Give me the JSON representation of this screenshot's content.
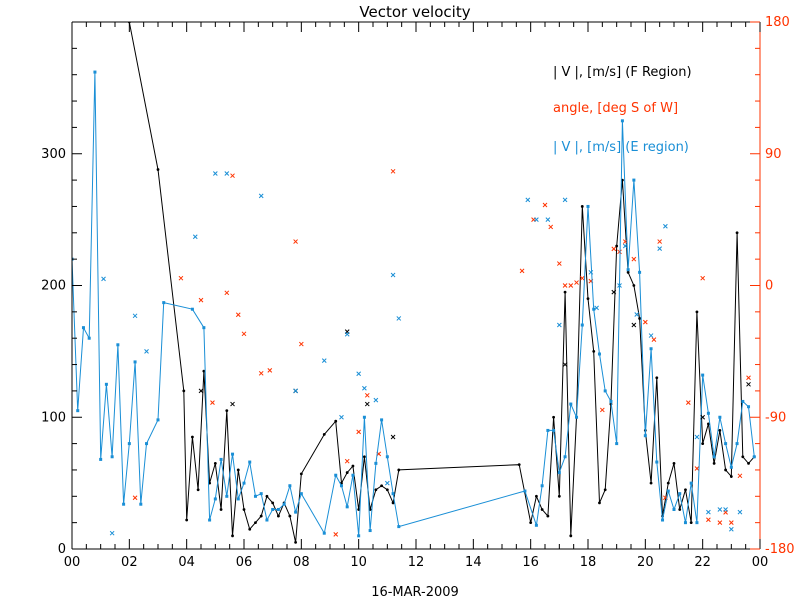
{
  "chart_data": {
    "type": "line",
    "title": "Vector velocity",
    "xlabel": "16-MAR-2009",
    "x_tick_labels": [
      "00",
      "02",
      "04",
      "06",
      "08",
      "10",
      "12",
      "14",
      "16",
      "18",
      "20",
      "22",
      "00"
    ],
    "xlim_hours": [
      0,
      24
    ],
    "y_left": {
      "range": [
        0,
        400
      ],
      "ticks": [
        0,
        100,
        200,
        300
      ],
      "tick_labels": [
        "0",
        "100",
        "200",
        "300"
      ]
    },
    "y_right": {
      "range": [
        -180,
        180
      ],
      "ticks": [
        -180,
        -90,
        0,
        90,
        180
      ],
      "tick_labels": [
        "-180",
        "-90",
        "0",
        "90",
        "180"
      ],
      "color": "#ff3300"
    },
    "legend_placement": "top-right",
    "series": [
      {
        "name": "| V |, [m/s] (F Region)",
        "color": "#000000",
        "axis": "left",
        "style": "line",
        "x": [
          2.0,
          3.0,
          3.9,
          4.0,
          4.2,
          4.4,
          4.6,
          4.8,
          5.0,
          5.2,
          5.4,
          5.6,
          5.8,
          6.0,
          6.2,
          6.4,
          6.6,
          6.8,
          7.0,
          7.2,
          7.4,
          7.6,
          7.8,
          8.0,
          8.8,
          9.2,
          9.4,
          9.6,
          9.8,
          10.0,
          10.2,
          10.4,
          10.6,
          10.8,
          11.0,
          11.2,
          11.4,
          15.6,
          16.0,
          16.2,
          16.4,
          16.6,
          16.8,
          17.0,
          17.2,
          17.4,
          17.6,
          17.8,
          18.0,
          18.2,
          18.4,
          18.6,
          18.8,
          19.0,
          19.2,
          19.4,
          19.6,
          19.8,
          20.0,
          20.2,
          20.4,
          20.6,
          20.8,
          21.0,
          21.2,
          21.4,
          21.6,
          21.8,
          22.0,
          22.2,
          22.4,
          22.6,
          22.8,
          23.0,
          23.2,
          23.4,
          23.6,
          23.8
        ],
        "y": [
          400,
          288,
          120,
          22,
          85,
          45,
          135,
          50,
          65,
          30,
          105,
          10,
          60,
          30,
          15,
          20,
          25,
          40,
          35,
          25,
          35,
          25,
          5,
          57,
          87,
          97,
          50,
          58,
          63,
          30,
          70,
          30,
          45,
          48,
          45,
          35,
          60,
          64,
          20,
          40,
          30,
          25,
          100,
          40,
          195,
          10,
          100,
          260,
          190,
          150,
          35,
          45,
          110,
          230,
          280,
          210,
          200,
          175,
          90,
          50,
          130,
          25,
          50,
          65,
          30,
          45,
          20,
          180,
          80,
          95,
          65,
          90,
          60,
          55,
          240,
          70,
          65,
          70
        ]
      },
      {
        "name": "angle, [deg S of W]",
        "color": "#ff3300",
        "axis": "right",
        "style": "scatter",
        "x": [
          2.2,
          3.8,
          4.5,
          4.9,
          5.4,
          5.6,
          5.8,
          6.0,
          6.6,
          6.9,
          7.8,
          8.0,
          9.2,
          9.6,
          10.0,
          10.3,
          10.7,
          11.2,
          15.7,
          16.1,
          16.5,
          16.7,
          17.0,
          17.2,
          17.4,
          17.6,
          17.8,
          18.1,
          18.5,
          18.9,
          19.1,
          19.3,
          19.6,
          20.0,
          20.3,
          20.5,
          20.7,
          21.5,
          21.8,
          22.0,
          22.2,
          22.6,
          22.8,
          23.0,
          23.3,
          23.6
        ],
        "y": [
          -145,
          5,
          -10,
          -80,
          -5,
          75,
          -20,
          -33,
          -60,
          -58,
          30,
          -40,
          -170,
          -120,
          -100,
          -75,
          -115,
          78,
          10,
          45,
          55,
          40,
          15,
          0,
          0,
          2,
          5,
          3,
          -85,
          25,
          23,
          30,
          18,
          -25,
          -37,
          30,
          -145,
          -80,
          -125,
          5,
          -160,
          -162,
          -155,
          -162,
          -130,
          -63
        ]
      },
      {
        "name": "| V |, [m/s] (E region)",
        "color": "#1a8fd6",
        "axis": "left",
        "style": "line",
        "x": [
          0.0,
          0.2,
          0.4,
          0.6,
          0.8,
          1.0,
          1.2,
          1.4,
          1.6,
          1.8,
          2.0,
          2.2,
          2.4,
          2.6,
          3.0,
          3.2,
          4.2,
          4.6,
          4.8,
          5.0,
          5.2,
          5.4,
          5.6,
          5.8,
          6.0,
          6.2,
          6.4,
          6.6,
          6.8,
          7.0,
          7.2,
          7.4,
          7.6,
          7.8,
          8.0,
          8.8,
          9.2,
          9.4,
          9.6,
          9.8,
          10.0,
          10.2,
          10.4,
          10.6,
          10.8,
          11.0,
          11.2,
          11.4,
          15.8,
          16.2,
          16.4,
          16.6,
          16.8,
          17.0,
          17.2,
          17.4,
          17.6,
          17.8,
          18.0,
          18.2,
          18.4,
          18.6,
          18.8,
          19.0,
          19.2,
          19.4,
          19.6,
          19.8,
          20.0,
          20.2,
          20.4,
          20.6,
          20.8,
          21.0,
          21.2,
          21.4,
          21.6,
          21.8,
          22.0,
          22.2,
          22.4,
          22.6,
          22.8,
          23.0,
          23.2,
          23.4,
          23.6,
          23.8
        ],
        "y": [
          220,
          105,
          168,
          160,
          362,
          68,
          125,
          70,
          155,
          34,
          80,
          142,
          34,
          80,
          98,
          187,
          182,
          168,
          22,
          38,
          68,
          40,
          72,
          38,
          50,
          66,
          40,
          42,
          22,
          30,
          30,
          34,
          48,
          28,
          42,
          12,
          56,
          48,
          32,
          56,
          10,
          100,
          14,
          65,
          98,
          70,
          42,
          17,
          44,
          18,
          48,
          90,
          90,
          58,
          70,
          110,
          100,
          170,
          260,
          182,
          148,
          120,
          112,
          80,
          325,
          212,
          280,
          210,
          86,
          152,
          66,
          22,
          44,
          30,
          42,
          20,
          50,
          20,
          132,
          103,
          70,
          100,
          80,
          62,
          80,
          112,
          108,
          70
        ]
      }
    ],
    "extra_markers": {
      "black_x": [
        [
          4.5,
          120
        ],
        [
          5.6,
          110
        ],
        [
          7.8,
          120
        ],
        [
          9.6,
          165
        ],
        [
          10.3,
          110
        ],
        [
          11.2,
          85
        ],
        [
          17.2,
          140
        ],
        [
          18.9,
          195
        ],
        [
          19.6,
          170
        ],
        [
          22.0,
          100
        ],
        [
          23.6,
          125
        ]
      ],
      "blue_x": [
        [
          1.1,
          205
        ],
        [
          1.4,
          12
        ],
        [
          2.2,
          177
        ],
        [
          2.6,
          150
        ],
        [
          4.3,
          237
        ],
        [
          5.0,
          285
        ],
        [
          5.4,
          285
        ],
        [
          6.6,
          268
        ],
        [
          7.8,
          120
        ],
        [
          8.8,
          143
        ],
        [
          9.4,
          100
        ],
        [
          9.6,
          163
        ],
        [
          10.0,
          133
        ],
        [
          10.2,
          122
        ],
        [
          10.6,
          113
        ],
        [
          11.0,
          50
        ],
        [
          11.2,
          208
        ],
        [
          11.4,
          175
        ],
        [
          15.9,
          265
        ],
        [
          16.2,
          250
        ],
        [
          16.6,
          250
        ],
        [
          17.0,
          170
        ],
        [
          17.2,
          265
        ],
        [
          18.1,
          210
        ],
        [
          18.3,
          183
        ],
        [
          19.1,
          200
        ],
        [
          19.3,
          230
        ],
        [
          19.7,
          178
        ],
        [
          20.2,
          162
        ],
        [
          20.5,
          228
        ],
        [
          20.7,
          245
        ],
        [
          21.8,
          85
        ],
        [
          22.2,
          28
        ],
        [
          22.6,
          30
        ],
        [
          22.8,
          30
        ],
        [
          23.0,
          15
        ],
        [
          23.3,
          28
        ]
      ]
    }
  }
}
